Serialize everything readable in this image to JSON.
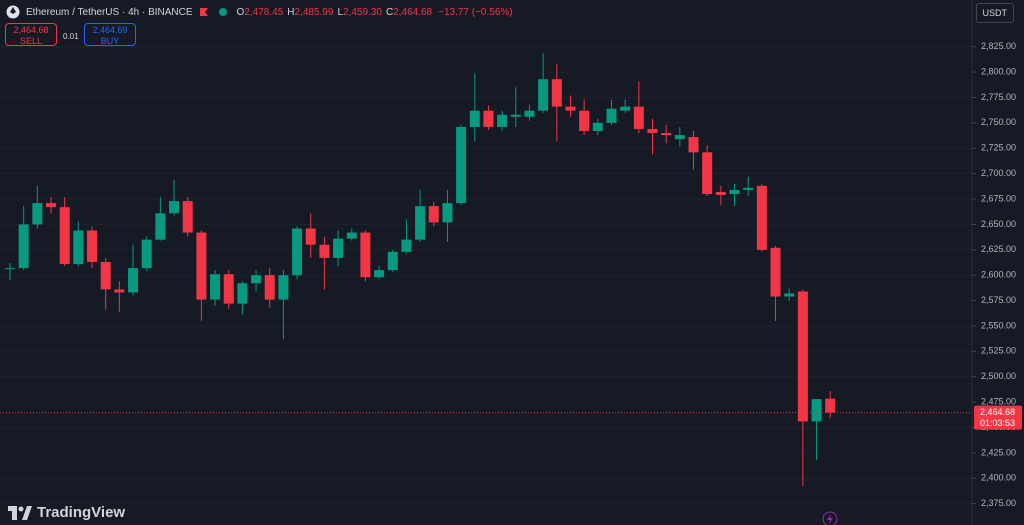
{
  "header": {
    "symbol": "Ethereum / TetherUS · 4h · BINANCE",
    "ohlc": [
      {
        "key": "O",
        "value": "2,478.45"
      },
      {
        "key": "H",
        "value": "2,485.99"
      },
      {
        "key": "L",
        "value": "2,459.30"
      },
      {
        "key": "C",
        "value": "2,464.68"
      }
    ],
    "change": "−13.77 (−0.56%)",
    "sell_price": "2,464.68",
    "sell_label": "SELL",
    "spread": "0.01",
    "buy_price": "2,464.69",
    "buy_label": "BUY",
    "currency": "USDT",
    "brand": "TradingView"
  },
  "chart_data": {
    "type": "candlestick",
    "up_color": "#089981",
    "down_color": "#f23645",
    "open": [
      2606,
      2607,
      2650,
      2671,
      2667,
      2611,
      2644,
      2613,
      2586,
      2583,
      2607,
      2635,
      2661,
      2673,
      2642,
      2576,
      2601,
      2572,
      2592,
      2600,
      2576,
      2600,
      2646,
      2630,
      2617,
      2636,
      2642,
      2598,
      2605,
      2623,
      2635,
      2668,
      2652,
      2671,
      2746,
      2762,
      2746,
      2756,
      2756,
      2762,
      2793,
      2766,
      2762,
      2742,
      2750,
      2762,
      2766,
      2744,
      2740,
      2734,
      2736,
      2721,
      2682,
      2680,
      2684,
      2688,
      2627,
      2579,
      2584,
      2456,
      2478.45
    ],
    "high": [
      2612,
      2668,
      2688,
      2677,
      2677,
      2653,
      2648,
      2617,
      2594,
      2630,
      2638,
      2677,
      2694,
      2677,
      2644,
      2605,
      2605,
      2594,
      2605,
      2607,
      2605,
      2648,
      2661,
      2638,
      2644,
      2646,
      2644,
      2609,
      2625,
      2655,
      2684,
      2672,
      2684,
      2748,
      2799,
      2767,
      2762,
      2785,
      2768,
      2819,
      2808,
      2777,
      2773,
      2754,
      2773,
      2773,
      2791,
      2754,
      2748,
      2746,
      2742,
      2728,
      2688,
      2690,
      2697,
      2690,
      2629,
      2587,
      2586,
      2478,
      2485.99
    ],
    "low": [
      2595,
      2605,
      2646,
      2661,
      2609,
      2609,
      2607,
      2566,
      2564,
      2580,
      2604,
      2634,
      2659,
      2638,
      2555,
      2570,
      2567,
      2561,
      2584,
      2568,
      2537,
      2596,
      2617,
      2586,
      2609,
      2634,
      2594,
      2596,
      2603,
      2621,
      2633,
      2648,
      2633,
      2669,
      2732,
      2743,
      2742,
      2746,
      2752,
      2760,
      2732,
      2756,
      2738,
      2738,
      2748,
      2760,
      2740,
      2719,
      2730,
      2727,
      2704,
      2678,
      2669,
      2668,
      2678,
      2623,
      2555,
      2575,
      2392,
      2418,
      2459.3
    ],
    "close": [
      2607,
      2650,
      2671,
      2667,
      2611,
      2644,
      2613,
      2586,
      2583,
      2607,
      2635,
      2661,
      2673,
      2642,
      2576,
      2601,
      2572,
      2592,
      2600,
      2576,
      2600,
      2646,
      2630,
      2617,
      2636,
      2642,
      2598,
      2605,
      2623,
      2635,
      2668,
      2652,
      2671,
      2746,
      2762,
      2746,
      2758,
      2758,
      2762,
      2793,
      2766,
      2762,
      2742,
      2750,
      2764,
      2766,
      2744,
      2740,
      2738,
      2738,
      2721,
      2680,
      2679,
      2684,
      2686,
      2625,
      2579,
      2582,
      2456,
      2478,
      2464.68
    ],
    "ylim": [
      2354,
      2871
    ],
    "yticks": [
      {
        "value": 2375,
        "label": "2,375.00"
      },
      {
        "value": 2400,
        "label": "2,400.00"
      },
      {
        "value": 2425,
        "label": "2,425.00"
      },
      {
        "value": 2450,
        "label": "2,450.00"
      },
      {
        "value": 2475,
        "label": "2,475.00"
      },
      {
        "value": 2500,
        "label": "2,500.00"
      },
      {
        "value": 2525,
        "label": "2,525.00"
      },
      {
        "value": 2550,
        "label": "2,550.00"
      },
      {
        "value": 2575,
        "label": "2,575.00"
      },
      {
        "value": 2600,
        "label": "2,600.00"
      },
      {
        "value": 2625,
        "label": "2,625.00"
      },
      {
        "value": 2650,
        "label": "2,650.00"
      },
      {
        "value": 2675,
        "label": "2,675.00"
      },
      {
        "value": 2700,
        "label": "2,700.00"
      },
      {
        "value": 2725,
        "label": "2,725.00"
      },
      {
        "value": 2750,
        "label": "2,750.00"
      },
      {
        "value": 2775,
        "label": "2,775.00"
      },
      {
        "value": 2800,
        "label": "2,800.00"
      },
      {
        "value": 2825,
        "label": "2,825.00"
      }
    ],
    "last_price": {
      "value": 2464.68,
      "label": "2,464.68"
    },
    "countdown": "01:03:53"
  }
}
